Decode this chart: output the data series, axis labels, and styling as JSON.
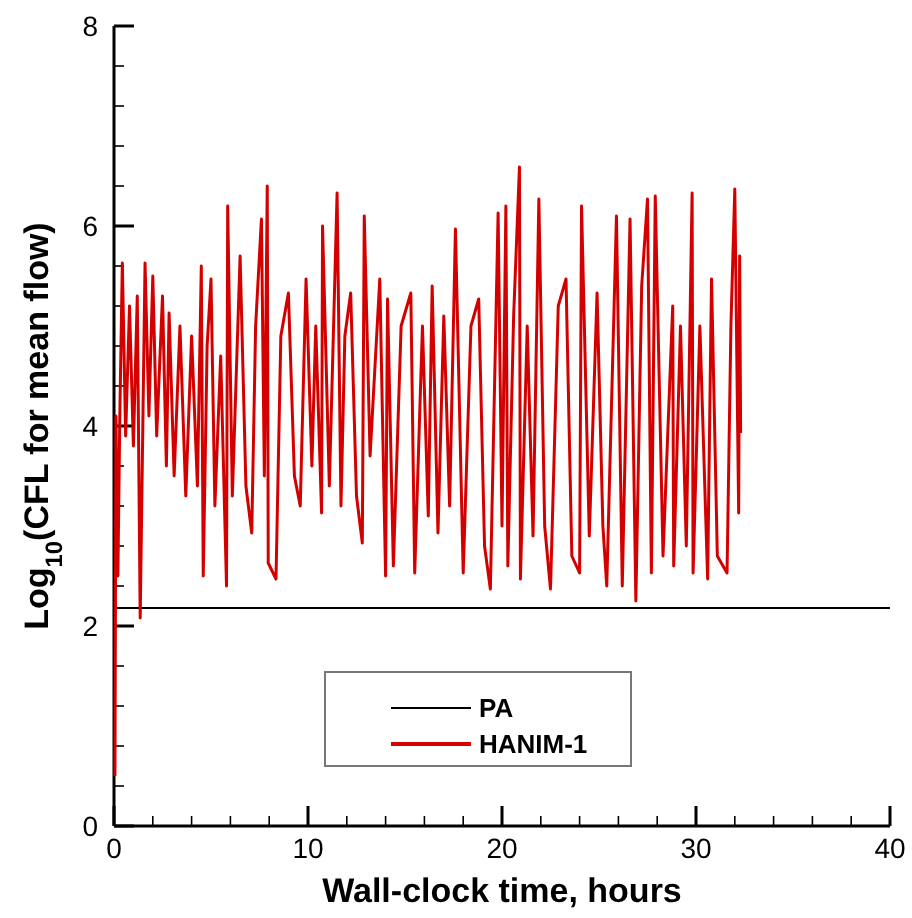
{
  "chart_data": {
    "type": "line",
    "xlabel": "Wall-clock time, hours",
    "ylabel": "Log$_{10}$(CFL for mean flow)",
    "xlim": [
      0,
      40
    ],
    "ylim": [
      0,
      8
    ],
    "xticks": [
      0,
      {
        "value": 2,
        "label": null
      },
      {
        "value": 4,
        "label": null
      },
      {
        "value": 6,
        "label": null
      },
      {
        "value": 8,
        "label": null
      },
      10,
      {
        "value": 12,
        "label": null
      },
      {
        "value": 14,
        "label": null
      },
      {
        "value": 16,
        "label": null
      },
      {
        "value": 18,
        "label": null
      },
      20,
      {
        "value": 22,
        "label": null
      },
      {
        "value": 24,
        "label": null
      },
      {
        "value": 26,
        "label": null
      },
      {
        "value": 28,
        "label": null
      },
      30,
      {
        "value": 32,
        "label": null
      },
      {
        "value": 34,
        "label": null
      },
      {
        "value": 36,
        "label": null
      },
      {
        "value": 38,
        "label": null
      },
      40
    ],
    "yticks": [
      0,
      {
        "value": 0.4,
        "label": null
      },
      {
        "value": 0.8,
        "label": null
      },
      {
        "value": 1.2,
        "label": null
      },
      {
        "value": 1.6,
        "label": null
      },
      2,
      {
        "value": 2.4,
        "label": null
      },
      {
        "value": 2.8,
        "label": null
      },
      {
        "value": 3.2,
        "label": null
      },
      {
        "value": 3.6,
        "label": null
      },
      4,
      {
        "value": 4.4,
        "label": null
      },
      {
        "value": 4.8,
        "label": null
      },
      {
        "value": 5.2,
        "label": null
      },
      {
        "value": 5.6,
        "label": null
      },
      6,
      {
        "value": 6.4,
        "label": null
      },
      {
        "value": 6.8,
        "label": null
      },
      {
        "value": 7.2,
        "label": null
      },
      {
        "value": 7.6,
        "label": null
      },
      8
    ],
    "grid": false,
    "legend": "bottom",
    "marker": "none",
    "series": [
      {
        "name": "PA",
        "color": "#000000",
        "x": [
          0.15,
          40
        ],
        "values": [
          2.18,
          2.18
        ]
      },
      {
        "name": "HANIM-1",
        "color": "#d40000",
        "x": [
          0.05,
          0.1,
          0.2,
          0.3,
          0.43,
          0.6,
          0.8,
          1.0,
          1.2,
          1.35,
          1.5,
          1.6,
          1.8,
          2.0,
          2.2,
          2.5,
          2.7,
          2.84,
          3.1,
          3.4,
          3.7,
          4.0,
          4.3,
          4.5,
          4.6,
          4.8,
          5.0,
          5.2,
          5.5,
          5.8,
          5.86,
          6.1,
          6.5,
          6.8,
          7.1,
          7.3,
          7.6,
          7.75,
          7.9,
          7.95,
          8.35,
          8.6,
          8.99,
          9.3,
          9.6,
          9.9,
          10.2,
          10.4,
          10.7,
          10.75,
          11.1,
          11.5,
          11.7,
          11.9,
          12.2,
          12.5,
          12.8,
          12.9,
          13.2,
          13.7,
          14.0,
          14.1,
          14.4,
          14.8,
          15.3,
          15.5,
          15.9,
          16.2,
          16.4,
          16.7,
          17.0,
          17.3,
          17.6,
          18.0,
          18.4,
          18.8,
          19.1,
          19.4,
          19.8,
          20.0,
          20.2,
          20.3,
          20.6,
          20.9,
          20.95,
          21.3,
          21.6,
          21.9,
          22.2,
          22.5,
          22.9,
          23.3,
          23.6,
          24.0,
          24.1,
          24.5,
          24.9,
          25.2,
          25.4,
          25.9,
          26.2,
          26.6,
          26.9,
          27.2,
          27.5,
          27.7,
          27.9,
          28.3,
          28.8,
          28.85,
          29.2,
          29.5,
          29.8,
          29.85,
          30.2,
          30.6,
          30.8,
          31.1,
          31.6,
          31.8,
          32.0,
          32.2,
          32.25,
          32.3
        ],
        "values": [
          0.5,
          4.1,
          2.5,
          4.1,
          5.63,
          3.9,
          5.2,
          3.8,
          5.3,
          2.08,
          4.2,
          5.63,
          4.1,
          5.5,
          3.9,
          5.3,
          3.6,
          5.13,
          3.5,
          5.0,
          3.3,
          4.9,
          3.4,
          5.6,
          2.5,
          4.8,
          5.47,
          3.2,
          4.7,
          2.4,
          6.2,
          3.3,
          5.7,
          3.4,
          2.93,
          5.0,
          6.07,
          3.5,
          6.4,
          2.63,
          2.47,
          4.9,
          5.33,
          3.5,
          3.2,
          5.47,
          3.6,
          5.0,
          3.13,
          6.0,
          3.4,
          6.33,
          3.2,
          4.9,
          5.33,
          3.3,
          2.83,
          6.1,
          3.7,
          5.47,
          2.5,
          5.27,
          2.6,
          5.0,
          5.33,
          2.53,
          5.0,
          3.1,
          5.4,
          2.93,
          5.1,
          3.2,
          5.97,
          2.53,
          5.0,
          5.27,
          2.8,
          2.37,
          6.13,
          3.0,
          6.2,
          2.6,
          5.1,
          6.59,
          2.47,
          5.0,
          2.9,
          6.27,
          3.0,
          2.37,
          5.2,
          5.47,
          2.7,
          2.53,
          6.2,
          2.9,
          5.33,
          3.0,
          2.4,
          6.1,
          2.4,
          6.07,
          2.25,
          5.4,
          6.27,
          2.53,
          6.3,
          2.7,
          5.2,
          2.6,
          5.0,
          2.8,
          6.33,
          2.53,
          5.0,
          2.47,
          5.47,
          2.7,
          2.53,
          5.0,
          6.37,
          3.13,
          5.7,
          3.93
        ]
      }
    ]
  }
}
